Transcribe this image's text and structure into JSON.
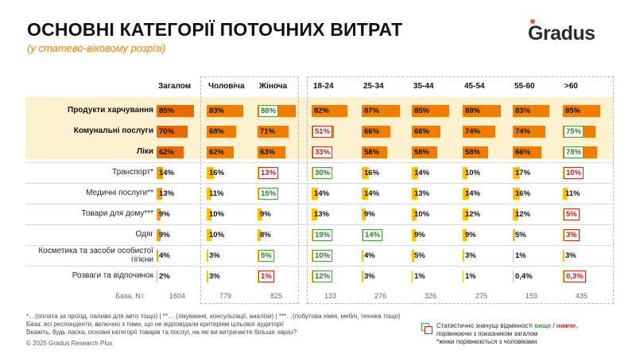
{
  "title": "ОСНОВНІ КАТЕГОРІЇ ПОТОЧНИХ ВИТРАТ",
  "subtitle": "(у статево-віковому розрізі)",
  "logo_text": "Gradus",
  "columns": [
    "Загалом",
    "Чоловіча",
    "Жіноча",
    "18-24",
    "25-34",
    "35-44",
    "45-54",
    "55-60",
    ">60"
  ],
  "rows": [
    {
      "label": "Продукти харчування",
      "bold": true,
      "cells": [
        {
          "v": 85,
          "t": "85%",
          "s": ""
        },
        {
          "v": 83,
          "t": "83%",
          "s": ""
        },
        {
          "v": 88,
          "t": "88%",
          "s": "up"
        },
        {
          "v": 82,
          "t": "82%",
          "s": ""
        },
        {
          "v": 87,
          "t": "87%",
          "s": ""
        },
        {
          "v": 85,
          "t": "85%",
          "s": ""
        },
        {
          "v": 88,
          "t": "88%",
          "s": ""
        },
        {
          "v": 83,
          "t": "83%",
          "s": ""
        },
        {
          "v": 85,
          "t": "85%",
          "s": ""
        }
      ]
    },
    {
      "label": "Комунальні послуги",
      "bold": true,
      "cells": [
        {
          "v": 70,
          "t": "70%",
          "s": ""
        },
        {
          "v": 68,
          "t": "68%",
          "s": ""
        },
        {
          "v": 71,
          "t": "71%",
          "s": ""
        },
        {
          "v": 51,
          "t": "51%",
          "s": "down"
        },
        {
          "v": 66,
          "t": "66%",
          "s": ""
        },
        {
          "v": 66,
          "t": "66%",
          "s": ""
        },
        {
          "v": 74,
          "t": "74%",
          "s": ""
        },
        {
          "v": 74,
          "t": "74%",
          "s": ""
        },
        {
          "v": 75,
          "t": "75%",
          "s": "up"
        }
      ]
    },
    {
      "label": "Ліки",
      "bold": true,
      "cells": [
        {
          "v": 62,
          "t": "62%",
          "s": ""
        },
        {
          "v": 62,
          "t": "62%",
          "s": ""
        },
        {
          "v": 63,
          "t": "63%",
          "s": ""
        },
        {
          "v": 33,
          "t": "33%",
          "s": "down"
        },
        {
          "v": 58,
          "t": "58%",
          "s": ""
        },
        {
          "v": 58,
          "t": "58%",
          "s": ""
        },
        {
          "v": 58,
          "t": "58%",
          "s": ""
        },
        {
          "v": 66,
          "t": "66%",
          "s": ""
        },
        {
          "v": 78,
          "t": "78%",
          "s": "up"
        }
      ]
    },
    {
      "label": "Транспорт*",
      "bold": false,
      "cells": [
        {
          "v": 14,
          "t": "14%",
          "s": ""
        },
        {
          "v": 16,
          "t": "16%",
          "s": ""
        },
        {
          "v": 13,
          "t": "13%",
          "s": "down"
        },
        {
          "v": 30,
          "t": "30%",
          "s": "up"
        },
        {
          "v": 16,
          "t": "16%",
          "s": ""
        },
        {
          "v": 14,
          "t": "14%",
          "s": ""
        },
        {
          "v": 10,
          "t": "10%",
          "s": ""
        },
        {
          "v": 17,
          "t": "17%",
          "s": ""
        },
        {
          "v": 10,
          "t": "10%",
          "s": "down"
        }
      ]
    },
    {
      "label": "Медичні послуги**",
      "bold": false,
      "cells": [
        {
          "v": 13,
          "t": "13%",
          "s": ""
        },
        {
          "v": 11,
          "t": "11%",
          "s": ""
        },
        {
          "v": 15,
          "t": "15%",
          "s": "up"
        },
        {
          "v": 14,
          "t": "14%",
          "s": ""
        },
        {
          "v": 14,
          "t": "14%",
          "s": ""
        },
        {
          "v": 13,
          "t": "13%",
          "s": ""
        },
        {
          "v": 14,
          "t": "14%",
          "s": ""
        },
        {
          "v": 16,
          "t": "16%",
          "s": ""
        },
        {
          "v": 11,
          "t": "11%",
          "s": ""
        }
      ]
    },
    {
      "label": "Товари для дому***",
      "bold": false,
      "cells": [
        {
          "v": 9,
          "t": "9%",
          "s": ""
        },
        {
          "v": 10,
          "t": "10%",
          "s": ""
        },
        {
          "v": 9,
          "t": "9%",
          "s": ""
        },
        {
          "v": 13,
          "t": "13%",
          "s": ""
        },
        {
          "v": 9,
          "t": "9%",
          "s": ""
        },
        {
          "v": 10,
          "t": "10%",
          "s": ""
        },
        {
          "v": 12,
          "t": "12%",
          "s": ""
        },
        {
          "v": 12,
          "t": "12%",
          "s": ""
        },
        {
          "v": 5,
          "t": "5%",
          "s": "down"
        }
      ]
    },
    {
      "label": "Одяг",
      "bold": false,
      "cells": [
        {
          "v": 9,
          "t": "9%",
          "s": ""
        },
        {
          "v": 10,
          "t": "10%",
          "s": ""
        },
        {
          "v": 8,
          "t": "8%",
          "s": ""
        },
        {
          "v": 19,
          "t": "19%",
          "s": "up"
        },
        {
          "v": 14,
          "t": "14%",
          "s": "up"
        },
        {
          "v": 9,
          "t": "9%",
          "s": ""
        },
        {
          "v": 9,
          "t": "9%",
          "s": ""
        },
        {
          "v": 5,
          "t": "5%",
          "s": ""
        },
        {
          "v": 3,
          "t": "3%",
          "s": "down"
        }
      ]
    },
    {
      "label": "Косметика та засоби особистої гігієни",
      "bold": false,
      "cells": [
        {
          "v": 4,
          "t": "4%",
          "s": ""
        },
        {
          "v": 3,
          "t": "3%",
          "s": ""
        },
        {
          "v": 5,
          "t": "5%",
          "s": "up"
        },
        {
          "v": 10,
          "t": "10%",
          "s": "up"
        },
        {
          "v": 4,
          "t": "4%",
          "s": ""
        },
        {
          "v": 5,
          "t": "5%",
          "s": ""
        },
        {
          "v": 3,
          "t": "3%",
          "s": ""
        },
        {
          "v": 1,
          "t": "1%",
          "s": ""
        },
        {
          "v": 3,
          "t": "3%",
          "s": ""
        }
      ]
    },
    {
      "label": "Розваги та відпочинок",
      "bold": false,
      "cells": [
        {
          "v": 2,
          "t": "2%",
          "s": ""
        },
        {
          "v": 3,
          "t": "3%",
          "s": ""
        },
        {
          "v": 1,
          "t": "1%",
          "s": "down"
        },
        {
          "v": 12,
          "t": "12%",
          "s": "up"
        },
        {
          "v": 3,
          "t": "3%",
          "s": ""
        },
        {
          "v": 1,
          "t": "1%",
          "s": ""
        },
        {
          "v": 1,
          "t": "1%",
          "s": ""
        },
        {
          "v": 0.4,
          "t": "0,4%",
          "s": ""
        },
        {
          "v": 0.3,
          "t": "0,3%",
          "s": "down"
        }
      ]
    }
  ],
  "base_label": "База, N=",
  "base_values": [
    "1604",
    "779",
    "825",
    "133",
    "276",
    "326",
    "275",
    "159",
    "435"
  ],
  "footnotes": [
    "*…(оплата за проїзд, паливо для авто тощо) | **… (лікування, консультації, аналізи) | ***…(побутова хімія, меблі, техніка тощо)",
    "База: всі респонденти, включно з тими, що не відповідали критеріям цільової аудиторії",
    "Вкажіть, будь ласка, основні  категорії товарів та послуг, на які ви витрачаєте більше зараз?"
  ],
  "copyright": "© 2025 Gradus Research Plus",
  "legend": {
    "prefix": "Статистично значущі відмінності ",
    "higher": "вище",
    "sep": " / ",
    "lower": "нижче",
    "line2": "порівнюючи з показником загалом",
    "line3": "*жінки порівнюються з чоловіками"
  },
  "colors": {
    "top3_primary": "#f07d00",
    "top3_total": "#e86a00",
    "other_primary": "#ffc000",
    "total_other": "#f5a200",
    "highlight_band": "#fdf1cf",
    "higher": "#46a23a",
    "lower": "#d6281f"
  }
}
